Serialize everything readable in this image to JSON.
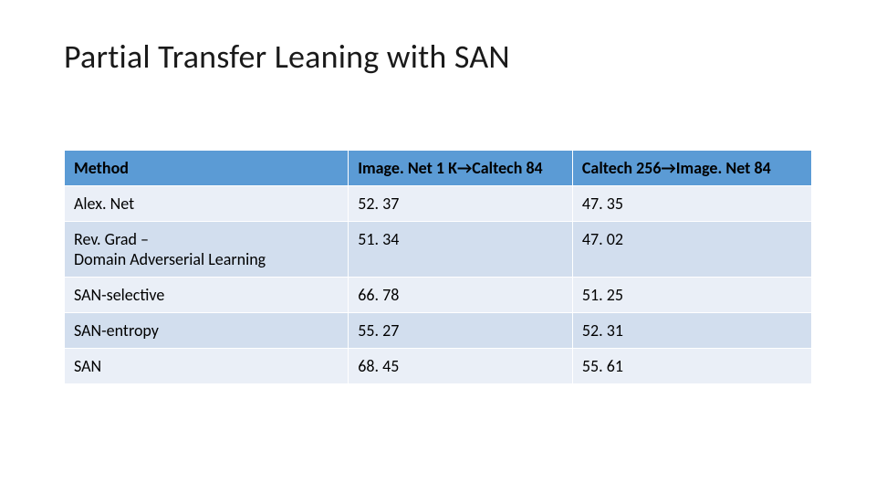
{
  "title": "Partial Transfer Leaning with SAN",
  "table": {
    "type": "table",
    "header": {
      "method_label": "Method",
      "col_a_label": "Image. Net 1 K→Caltech 84",
      "col_b_label": "Caltech 256→Image. Net 84"
    },
    "rows": [
      {
        "method": "Alex. Net",
        "method_sub": "",
        "a": "52. 37",
        "b": "47. 35"
      },
      {
        "method": "Rev. Grad –",
        "method_sub": "Domain Adverserial Learning",
        "a": "51. 34",
        "b": "47. 02"
      },
      {
        "method": "SAN-selective",
        "method_sub": "",
        "a": "66. 78",
        "b": "51. 25"
      },
      {
        "method": "SAN-entropy",
        "method_sub": "",
        "a": "55. 27",
        "b": "52. 31"
      },
      {
        "method": "SAN",
        "method_sub": "",
        "a": "68. 45",
        "b": "55. 61"
      }
    ],
    "colors": {
      "header_bg": "#5b9bd5",
      "band_light": "#eaeff7",
      "band_dark": "#d2deee",
      "border": "#ffffff",
      "text": "#000000"
    },
    "column_widths_pct": [
      38,
      30,
      32
    ],
    "title_fontsize_pt": 28,
    "cell_fontsize_pt": 14
  }
}
